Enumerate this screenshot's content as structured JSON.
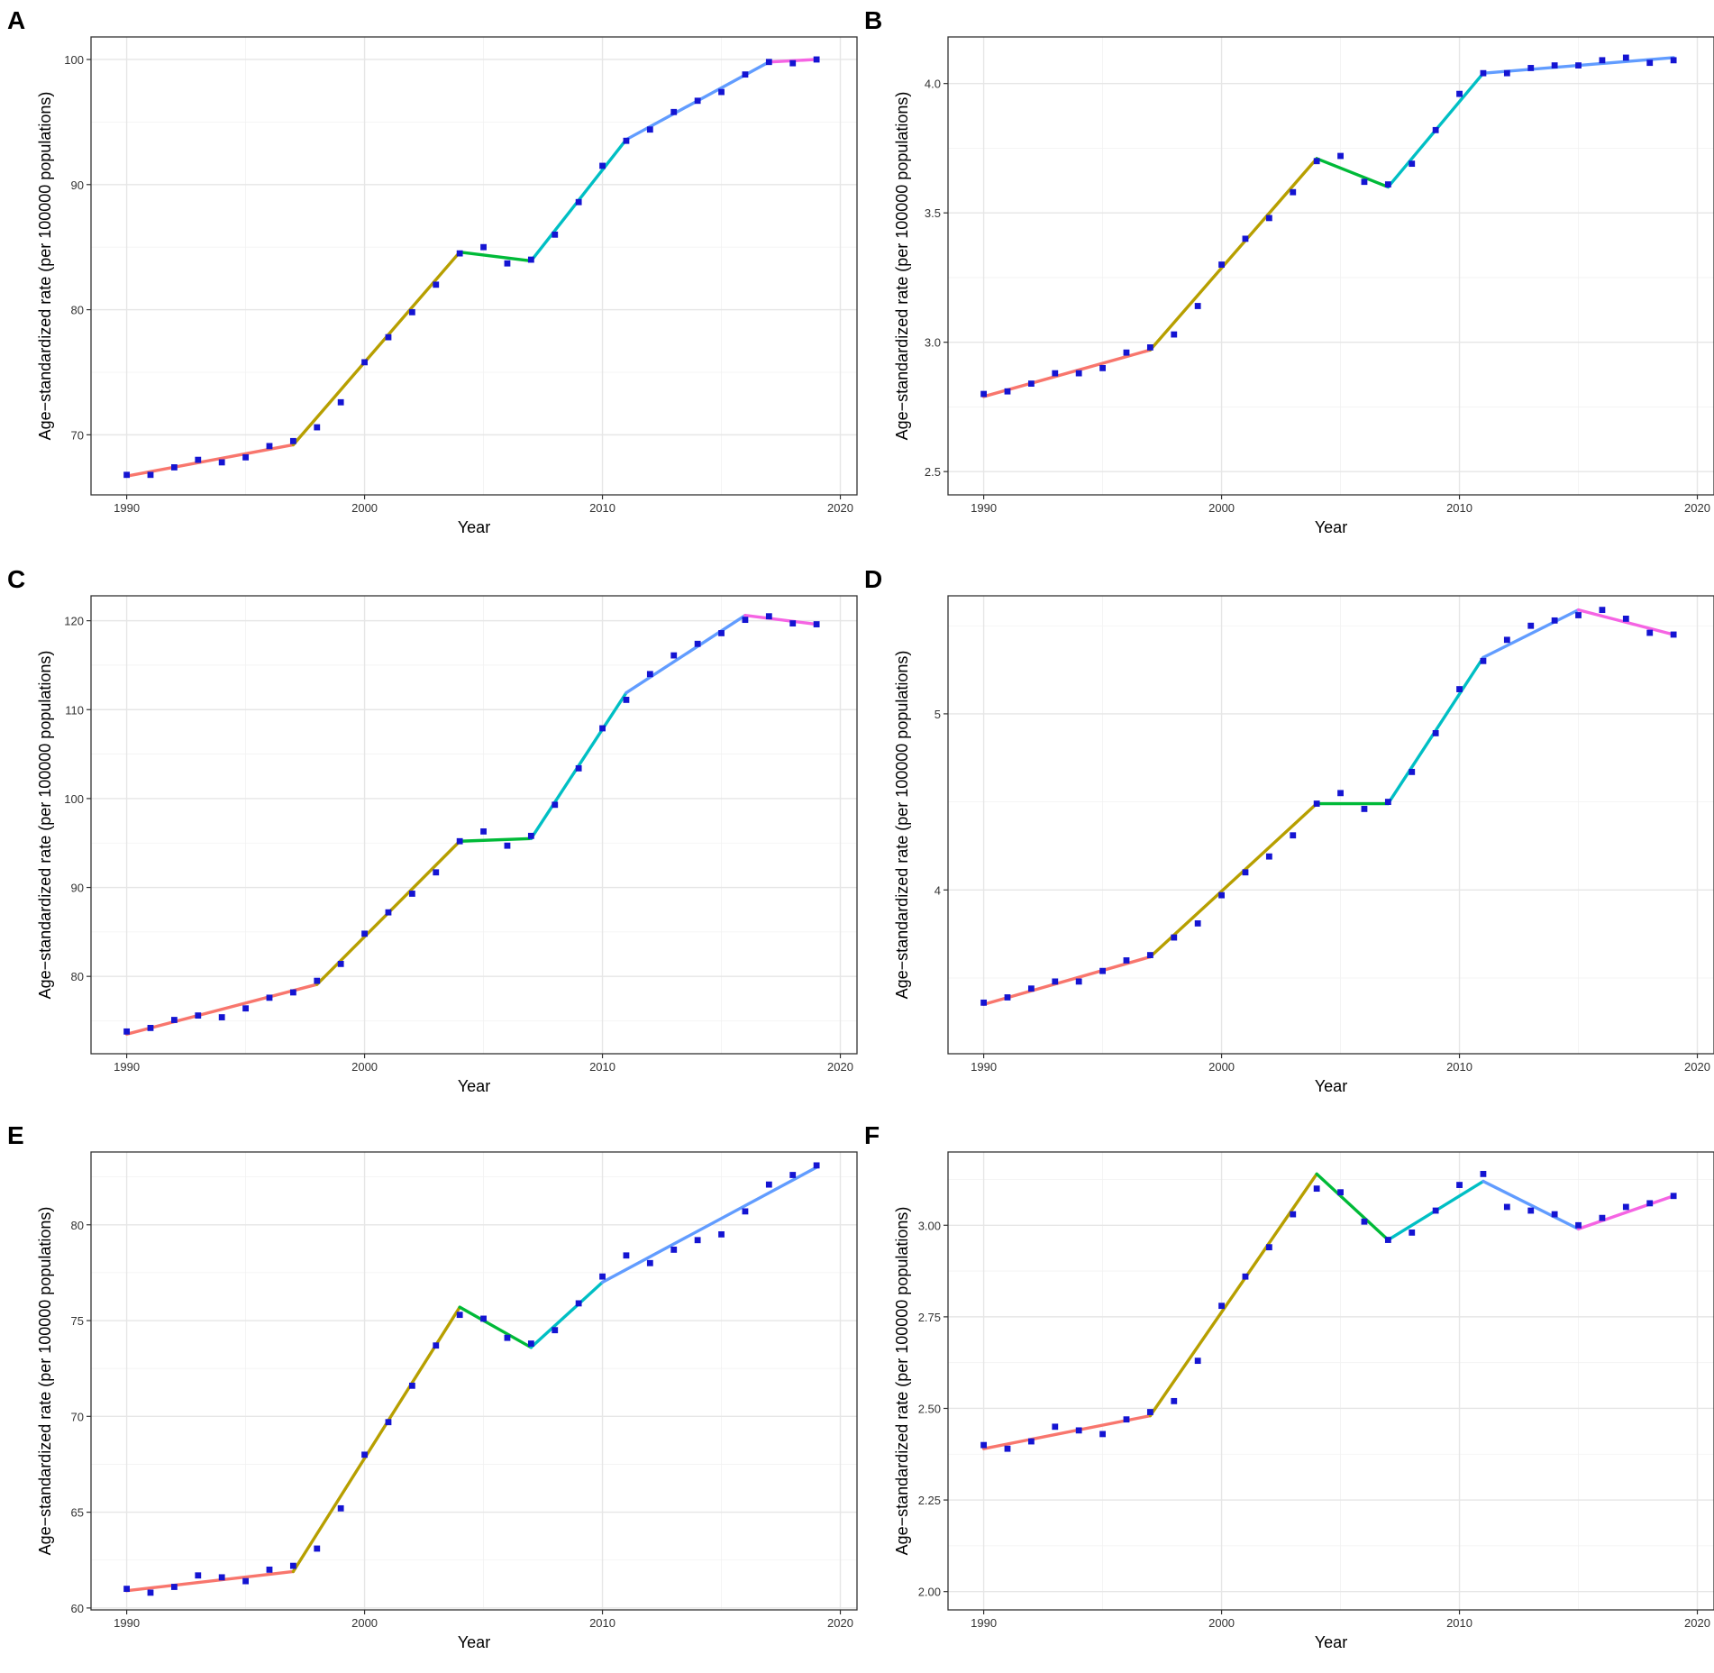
{
  "figure": {
    "segment_colors": [
      "#F8766D",
      "#B79F00",
      "#00BA38",
      "#00BFC4",
      "#619CFF",
      "#F564E3"
    ],
    "point_color": "#1414D2"
  },
  "chart_data": [
    {
      "panel": "A",
      "type": "line",
      "xlabel": "Year",
      "ylabel": "Age−standardized rate (per 100000 populations)",
      "xlim": [
        1988.5,
        2020.7
      ],
      "ylim": [
        65.2,
        101.8
      ],
      "xticks": [
        1990,
        2000,
        2010,
        2020
      ],
      "yticks": [
        70,
        80,
        90,
        100
      ],
      "ytick_labels": [
        "70",
        "80",
        "90",
        "100"
      ],
      "x": [
        1990,
        1991,
        1992,
        1993,
        1994,
        1995,
        1996,
        1997,
        1998,
        1999,
        2000,
        2001,
        2002,
        2003,
        2004,
        2005,
        2006,
        2007,
        2008,
        2009,
        2010,
        2011,
        2012,
        2013,
        2014,
        2015,
        2016,
        2017,
        2018,
        2019
      ],
      "points": [
        66.8,
        66.8,
        67.4,
        68.0,
        67.8,
        68.2,
        69.1,
        69.5,
        70.6,
        72.6,
        75.8,
        77.8,
        79.8,
        82.0,
        84.5,
        85.0,
        83.7,
        84.0,
        86.0,
        88.6,
        91.5,
        93.5,
        94.4,
        95.8,
        96.7,
        97.4,
        98.8,
        99.8,
        99.7,
        100.0
      ],
      "segments": [
        [
          1990,
          66.7
        ],
        [
          1997,
          69.2
        ],
        [
          2004,
          84.6
        ],
        [
          2007,
          83.9
        ],
        [
          2011,
          93.6
        ],
        [
          2017,
          99.8
        ],
        [
          2019,
          100.0
        ]
      ]
    },
    {
      "panel": "B",
      "type": "line",
      "xlabel": "Year",
      "ylabel": "Age−standardized rate (per 100000 populations)",
      "xlim": [
        1988.5,
        2020.7
      ],
      "ylim": [
        2.41,
        4.18
      ],
      "xticks": [
        1990,
        2000,
        2010,
        2020
      ],
      "yticks": [
        2.5,
        3.0,
        3.5,
        4.0
      ],
      "ytick_labels": [
        "2.5",
        "3.0",
        "3.5",
        "4.0"
      ],
      "x": [
        1990,
        1991,
        1992,
        1993,
        1994,
        1995,
        1996,
        1997,
        1998,
        1999,
        2000,
        2001,
        2002,
        2003,
        2004,
        2005,
        2006,
        2007,
        2008,
        2009,
        2010,
        2011,
        2012,
        2013,
        2014,
        2015,
        2016,
        2017,
        2018,
        2019
      ],
      "points": [
        2.8,
        2.81,
        2.84,
        2.88,
        2.88,
        2.9,
        2.96,
        2.98,
        3.03,
        3.14,
        3.3,
        3.4,
        3.48,
        3.58,
        3.7,
        3.72,
        3.62,
        3.61,
        3.69,
        3.82,
        3.96,
        4.04,
        4.04,
        4.06,
        4.07,
        4.07,
        4.09,
        4.1,
        4.08,
        4.09
      ],
      "segments": [
        [
          1990,
          2.79
        ],
        [
          1997,
          2.97
        ],
        [
          2004,
          3.71
        ],
        [
          2007,
          3.6
        ],
        [
          2011,
          4.04
        ],
        [
          2019,
          4.1
        ]
      ]
    },
    {
      "panel": "C",
      "type": "line",
      "xlabel": "Year",
      "ylabel": "Age−standardized rate (per 100000 populations)",
      "xlim": [
        1988.5,
        2020.7
      ],
      "ylim": [
        71.3,
        122.8
      ],
      "xticks": [
        1990,
        2000,
        2010,
        2020
      ],
      "yticks": [
        80,
        90,
        100,
        110,
        120
      ],
      "ytick_labels": [
        "80",
        "90",
        "100",
        "110",
        "120"
      ],
      "x": [
        1990,
        1991,
        1992,
        1993,
        1994,
        1995,
        1996,
        1997,
        1998,
        1999,
        2000,
        2001,
        2002,
        2003,
        2004,
        2005,
        2006,
        2007,
        2008,
        2009,
        2010,
        2011,
        2012,
        2013,
        2014,
        2015,
        2016,
        2017,
        2018,
        2019
      ],
      "points": [
        73.8,
        74.2,
        75.1,
        75.6,
        75.4,
        76.4,
        77.6,
        78.2,
        79.5,
        81.4,
        84.8,
        87.2,
        89.3,
        91.7,
        95.2,
        96.3,
        94.7,
        95.8,
        99.3,
        103.4,
        107.9,
        111.1,
        114.0,
        116.1,
        117.4,
        118.6,
        120.1,
        120.5,
        119.7,
        119.6
      ],
      "segments": [
        [
          1990,
          73.5
        ],
        [
          1998,
          79.1
        ],
        [
          2004,
          95.2
        ],
        [
          2007,
          95.5
        ],
        [
          2011,
          111.9
        ],
        [
          2016,
          120.6
        ],
        [
          2019,
          119.6
        ]
      ]
    },
    {
      "panel": "D",
      "type": "line",
      "xlabel": "Year",
      "ylabel": "Age−standardized rate (per 100000 populations)",
      "xlim": [
        1988.5,
        2020.7
      ],
      "ylim": [
        3.07,
        5.67
      ],
      "xticks": [
        1990,
        2000,
        2010,
        2020
      ],
      "yticks": [
        4,
        5
      ],
      "ytick_labels": [
        "4",
        "5"
      ],
      "x": [
        1990,
        1991,
        1992,
        1993,
        1994,
        1995,
        1996,
        1997,
        1998,
        1999,
        2000,
        2001,
        2002,
        2003,
        2004,
        2005,
        2006,
        2007,
        2008,
        2009,
        2010,
        2011,
        2012,
        2013,
        2014,
        2015,
        2016,
        2017,
        2018,
        2019
      ],
      "points": [
        3.36,
        3.39,
        3.44,
        3.48,
        3.48,
        3.54,
        3.6,
        3.63,
        3.73,
        3.81,
        3.97,
        4.1,
        4.19,
        4.31,
        4.49,
        4.55,
        4.46,
        4.5,
        4.67,
        4.89,
        5.14,
        5.3,
        5.42,
        5.5,
        5.53,
        5.56,
        5.59,
        5.54,
        5.46,
        5.45
      ],
      "segments": [
        [
          1990,
          3.35
        ],
        [
          1997,
          3.62
        ],
        [
          2004,
          4.49
        ],
        [
          2007,
          4.49
        ],
        [
          2011,
          5.32
        ],
        [
          2015,
          5.59
        ],
        [
          2019,
          5.45
        ]
      ]
    },
    {
      "panel": "E",
      "type": "line",
      "xlabel": "Year",
      "ylabel": "Age−standardized rate (per 100000 populations)",
      "xlim": [
        1988.5,
        2020.7
      ],
      "ylim": [
        59.9,
        83.8
      ],
      "xticks": [
        1990,
        2000,
        2010,
        2020
      ],
      "yticks": [
        60,
        65,
        70,
        75,
        80
      ],
      "ytick_labels": [
        "60",
        "65",
        "70",
        "75",
        "80"
      ],
      "x": [
        1990,
        1991,
        1992,
        1993,
        1994,
        1995,
        1996,
        1997,
        1998,
        1999,
        2000,
        2001,
        2002,
        2003,
        2004,
        2005,
        2006,
        2007,
        2008,
        2009,
        2010,
        2011,
        2012,
        2013,
        2014,
        2015,
        2016,
        2017,
        2018,
        2019
      ],
      "points": [
        61.0,
        60.8,
        61.1,
        61.7,
        61.6,
        61.4,
        62.0,
        62.2,
        63.1,
        65.2,
        68.0,
        69.7,
        71.6,
        73.7,
        75.3,
        75.1,
        74.1,
        73.8,
        74.5,
        75.9,
        77.3,
        78.4,
        78.0,
        78.7,
        79.2,
        79.5,
        80.7,
        82.1,
        82.6,
        83.1
      ],
      "segments": [
        [
          1990,
          60.9
        ],
        [
          1997,
          61.9
        ],
        [
          2004,
          75.7
        ],
        [
          2007,
          73.6
        ],
        [
          2010,
          77.0
        ],
        [
          2019,
          83.0
        ]
      ]
    },
    {
      "panel": "F",
      "type": "line",
      "xlabel": "Year",
      "ylabel": "Age−standardized rate (per 100000 populations)",
      "xlim": [
        1988.5,
        2020.7
      ],
      "ylim": [
        1.95,
        3.2
      ],
      "xticks": [
        1990,
        2000,
        2010,
        2020
      ],
      "yticks": [
        2.0,
        2.25,
        2.5,
        2.75,
        3.0
      ],
      "ytick_labels": [
        "2.00",
        "2.25",
        "2.50",
        "2.75",
        "3.00"
      ],
      "x": [
        1990,
        1991,
        1992,
        1993,
        1994,
        1995,
        1996,
        1997,
        1998,
        1999,
        2000,
        2001,
        2002,
        2003,
        2004,
        2005,
        2006,
        2007,
        2008,
        2009,
        2010,
        2011,
        2012,
        2013,
        2014,
        2015,
        2016,
        2017,
        2018,
        2019
      ],
      "points": [
        2.4,
        2.39,
        2.41,
        2.45,
        2.44,
        2.43,
        2.47,
        2.49,
        2.52,
        2.63,
        2.78,
        2.86,
        2.94,
        3.03,
        3.1,
        3.09,
        3.01,
        2.96,
        2.98,
        3.04,
        3.11,
        3.14,
        3.05,
        3.04,
        3.03,
        3.0,
        3.02,
        3.05,
        3.06,
        3.08
      ],
      "segments": [
        [
          1990,
          2.39
        ],
        [
          1997,
          2.48
        ],
        [
          2004,
          3.14
        ],
        [
          2007,
          2.96
        ],
        [
          2011,
          3.12
        ],
        [
          2015,
          2.99
        ],
        [
          2019,
          3.08
        ]
      ]
    }
  ]
}
